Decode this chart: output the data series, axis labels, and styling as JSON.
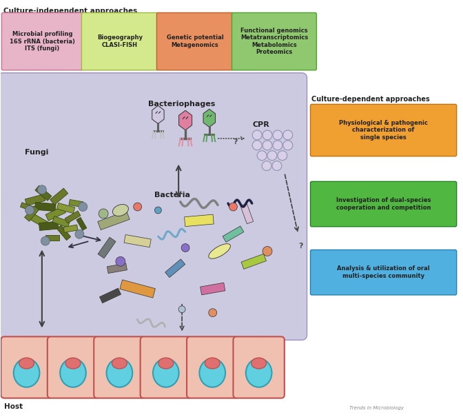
{
  "bg_color": "#ffffff",
  "main_area_color": "#cccae0",
  "header_label": "Culture-independent approaches",
  "right_label": "Culture-dependent approaches",
  "top_boxes": [
    {
      "label": "Microbial profiling\n16S rRNA (bacteria)\nITS (fungi)",
      "color": "#e8b4c8",
      "border": "#c87090"
    },
    {
      "label": "Biogeography\nCLASI-FISH",
      "color": "#d4e88c",
      "border": "#a0b840"
    },
    {
      "label": "Genetic potential\nMetagenomics",
      "color": "#e89060",
      "border": "#c06030"
    },
    {
      "label": "Functional genomics\nMetatranscriptomics\nMetabolomics\nProteomics",
      "color": "#90c870",
      "border": "#50a030"
    }
  ],
  "right_boxes": [
    {
      "label": "Physiological & pathogenic\ncharacterization of\nsingle species",
      "color": "#f0a030",
      "border": "#c07010"
    },
    {
      "label": "Investigation of dual-species\ncooperation and competition",
      "color": "#50b840",
      "border": "#208020"
    },
    {
      "label": "Analysis & utilization of oral\nmulti-species community",
      "color": "#50b0e0",
      "border": "#2080b0"
    }
  ],
  "fungi_label": "Fungi",
  "bacteriophages_label": "Bacteriophages",
  "bacteria_label": "Bacteria",
  "cpr_label": "CPR",
  "host_label": "Host"
}
